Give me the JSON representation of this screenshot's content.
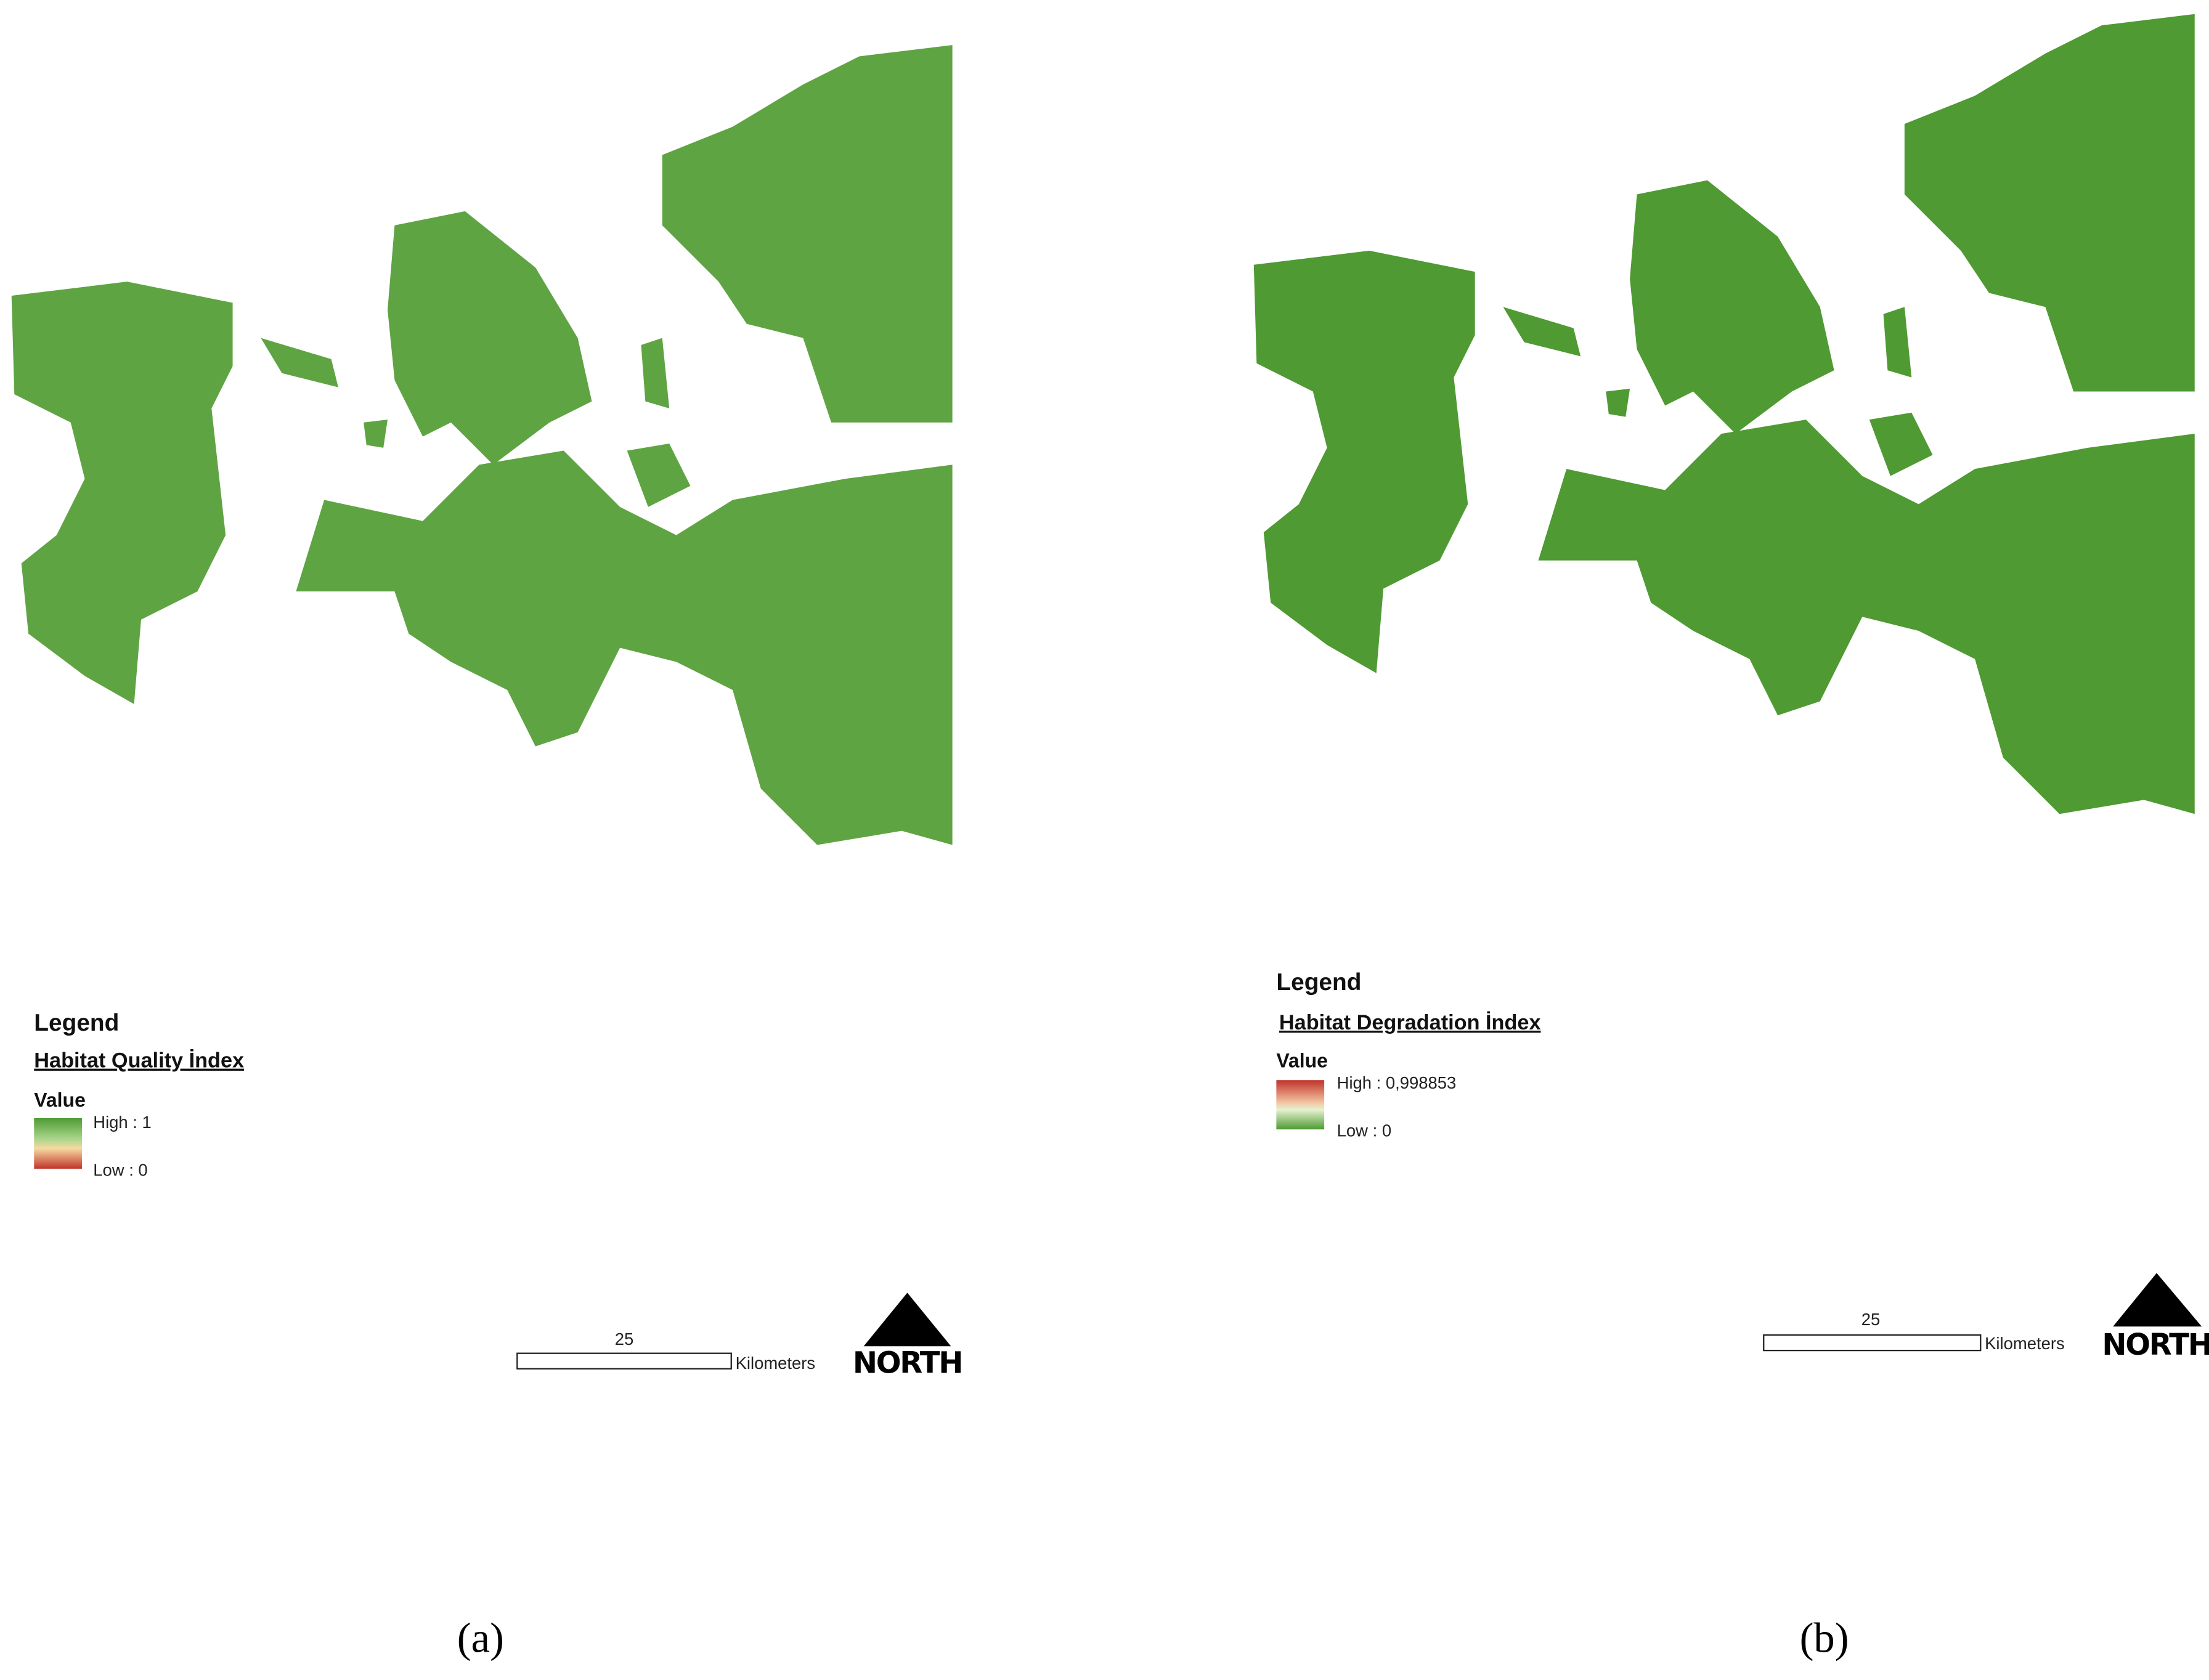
{
  "panels": [
    {
      "caption": "(a)",
      "legend": {
        "title": "Legend",
        "index": "Habitat Quality İndex",
        "value_heading": "Value",
        "high": "High : 1",
        "low": "Low : 0"
      },
      "scale_bar": {
        "distance": "25",
        "unit": "Kilometers"
      },
      "north": "NORTH"
    },
    {
      "caption": "(b)",
      "legend": {
        "title": "Legend",
        "index": "Habitat Degradation İndex",
        "value_heading": "Value",
        "high": "High : 0,998853",
        "low": "Low : 0"
      },
      "scale_bar": {
        "distance": "25",
        "unit": "Kilometers"
      },
      "north": "NORTH"
    }
  ]
}
